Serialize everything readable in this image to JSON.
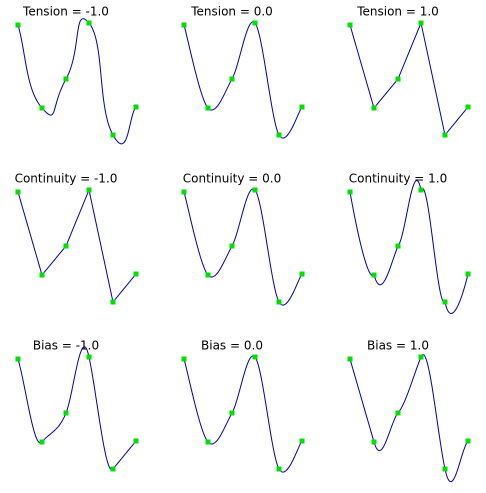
{
  "chart_data": [
    {
      "type": "spline",
      "title": "Tension = -1.0",
      "tension": -1.0,
      "continuity": 0,
      "bias": 0,
      "x": [
        18,
        42,
        66,
        89,
        113,
        136
      ],
      "values": [
        135,
        52,
        81,
        137,
        25,
        53
      ],
      "xlim": [
        0,
        160
      ],
      "ylim": [
        0,
        160
      ],
      "color": "#0000b0",
      "point_color": "#00e000"
    },
    {
      "type": "spline",
      "title": "Tension = 0.0",
      "tension": 0,
      "continuity": 0,
      "bias": 0,
      "x": [
        18,
        42,
        66,
        89,
        113,
        136
      ],
      "values": [
        135,
        52,
        81,
        137,
        25,
        53
      ],
      "xlim": [
        0,
        160
      ],
      "ylim": [
        0,
        160
      ],
      "color": "#0000b0",
      "point_color": "#00e000"
    },
    {
      "type": "spline",
      "title": "Tension = 1.0",
      "tension": 1.0,
      "continuity": 0,
      "bias": 0,
      "x": [
        18,
        42,
        66,
        89,
        113,
        136
      ],
      "values": [
        135,
        52,
        81,
        137,
        25,
        53
      ],
      "xlim": [
        0,
        160
      ],
      "ylim": [
        0,
        160
      ],
      "color": "#0000b0",
      "point_color": "#00e000"
    },
    {
      "type": "spline",
      "title": "Continuity = -1.0",
      "tension": 0,
      "continuity": -1.0,
      "bias": 0,
      "x": [
        18,
        42,
        66,
        89,
        113,
        136
      ],
      "values": [
        135,
        52,
        81,
        137,
        25,
        53
      ],
      "xlim": [
        0,
        160
      ],
      "ylim": [
        0,
        160
      ],
      "color": "#0000b0",
      "point_color": "#00e000"
    },
    {
      "type": "spline",
      "title": "Continuity = 0.0",
      "tension": 0,
      "continuity": 0,
      "bias": 0,
      "x": [
        18,
        42,
        66,
        89,
        113,
        136
      ],
      "values": [
        135,
        52,
        81,
        137,
        25,
        53
      ],
      "xlim": [
        0,
        160
      ],
      "ylim": [
        0,
        160
      ],
      "color": "#0000b0",
      "point_color": "#00e000"
    },
    {
      "type": "spline",
      "title": "Continuity = 1.0",
      "tension": 0,
      "continuity": 1.0,
      "bias": 0,
      "x": [
        18,
        42,
        66,
        89,
        113,
        136
      ],
      "values": [
        135,
        52,
        81,
        137,
        25,
        53
      ],
      "xlim": [
        0,
        160
      ],
      "ylim": [
        0,
        160
      ],
      "color": "#0000b0",
      "point_color": "#00e000"
    },
    {
      "type": "spline",
      "title": "Bias = -1.0",
      "tension": 0,
      "continuity": 0,
      "bias": -1.0,
      "x": [
        18,
        42,
        66,
        89,
        113,
        136
      ],
      "values": [
        135,
        52,
        81,
        137,
        25,
        53
      ],
      "xlim": [
        0,
        160
      ],
      "ylim": [
        0,
        160
      ],
      "color": "#0000b0",
      "point_color": "#00e000"
    },
    {
      "type": "spline",
      "title": "Bias = 0.0",
      "tension": 0,
      "continuity": 0,
      "bias": 0,
      "x": [
        18,
        42,
        66,
        89,
        113,
        136
      ],
      "values": [
        135,
        52,
        81,
        137,
        25,
        53
      ],
      "xlim": [
        0,
        160
      ],
      "ylim": [
        0,
        160
      ],
      "color": "#0000b0",
      "point_color": "#00e000"
    },
    {
      "type": "spline",
      "title": "Bias = 1.0",
      "tension": 0,
      "continuity": 0,
      "bias": 1.0,
      "x": [
        18,
        42,
        66,
        89,
        113,
        136
      ],
      "values": [
        135,
        52,
        81,
        137,
        25,
        53
      ],
      "xlim": [
        0,
        160
      ],
      "ylim": [
        0,
        160
      ],
      "color": "#0000b0",
      "point_color": "#00e000"
    }
  ]
}
